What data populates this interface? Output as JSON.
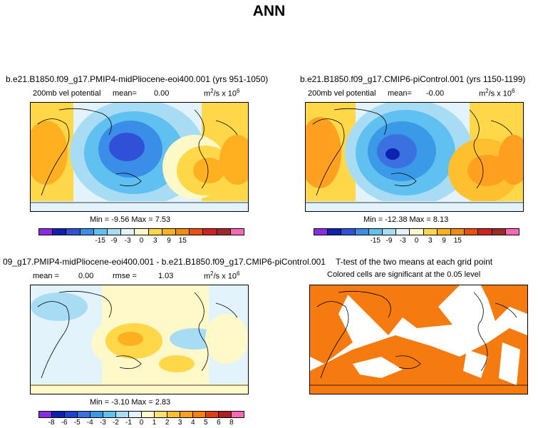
{
  "page_title": "ANN",
  "chart_data": [
    {
      "type": "heatmap",
      "title": "b.e21.B1850.f09_g17.PMIP4-midPliocene-eoi400.001 (yrs 951-1050)",
      "variable": "200mb vel potential",
      "mean_label": "mean=",
      "mean_value": "0.00",
      "units_prefix": "m",
      "units_exp": "2",
      "units_mid": "/s x 10",
      "units_exp2": "6",
      "min_max_text": "Min = -9.56 Max = 7.53",
      "min": -9.56,
      "max": 7.53,
      "colorbar_ticks": [
        "-15",
        "-9",
        "-3",
        "0",
        "3",
        "9",
        "15"
      ]
    },
    {
      "type": "heatmap",
      "title": "b.e21.B1850.f09_g17.CMIP6-piControl.001 (yrs 1150-1199)",
      "variable": "200mb vel potential",
      "mean_label": "mean=",
      "mean_value": "-0.00",
      "units_prefix": "m",
      "units_exp": "2",
      "units_mid": "/s x 10",
      "units_exp2": "6",
      "min_max_text": "Min = -12.38 Max = 8.13",
      "min": -12.38,
      "max": 8.13,
      "colorbar_ticks": [
        "-15",
        "-9",
        "-3",
        "0",
        "3",
        "9",
        "15"
      ]
    },
    {
      "type": "heatmap",
      "title": "09_g17.PMIP4-midPliocene-eoi400.001 - b.e21.B1850.f09_g17.CMIP6-piControl.001",
      "mean_label": "mean =",
      "mean_value": "0.00",
      "rmse_label": "rmse =",
      "rmse_value": "1.03",
      "units_prefix": "m",
      "units_exp": "2",
      "units_mid": "/s x 10",
      "units_exp2": "6",
      "min_max_text": "Min = -3.10 Max = 2.83",
      "min": -3.1,
      "max": 2.83,
      "colorbar_ticks": [
        "-8",
        "-6",
        "-5",
        "-4",
        "-3",
        "-2",
        "-1",
        "0",
        "1",
        "2",
        "3",
        "4",
        "5",
        "6",
        "8"
      ]
    },
    {
      "type": "heatmap",
      "title": "T-test of the two means at each grid point",
      "subtitle": "Colored cells are significant at the 0.05 level"
    }
  ],
  "colors": {
    "scale_a": [
      "#8a2be2",
      "#1020b0",
      "#3050d8",
      "#3a8ee8",
      "#60c0f0",
      "#a8dcf5",
      "#e2f3fb",
      "#fff8c8",
      "#ffd84a",
      "#ffb020",
      "#f58a10",
      "#e85010",
      "#d02020",
      "#a02828",
      "#ff69b4"
    ],
    "scale_b": [
      "#8a2be2",
      "#1020b0",
      "#2040d0",
      "#3a70e0",
      "#3a9ae8",
      "#60c0f0",
      "#a8dcf5",
      "#e2f3fb",
      "#fff8c8",
      "#ffe070",
      "#ffc030",
      "#ffa020",
      "#f58010",
      "#e04010",
      "#b02020",
      "#ff69b4"
    ],
    "ttest": "#f57a10"
  }
}
